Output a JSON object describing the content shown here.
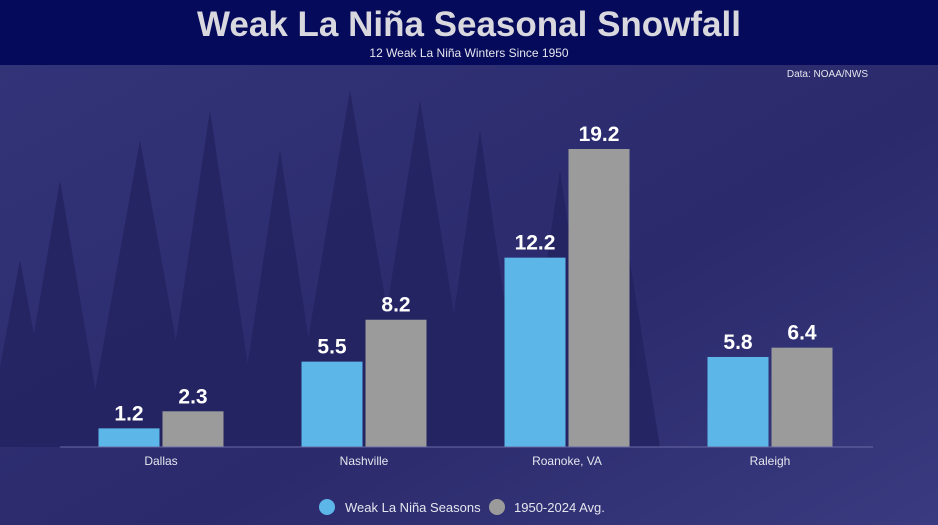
{
  "chart_data": {
    "type": "bar",
    "title": "Weak La Niña Seasonal Snowfall",
    "subtitle": "12 Weak La Niña Winters Since 1950",
    "source": "Data: NOAA/NWS",
    "categories": [
      "Dallas",
      "Nashville",
      "Roanoke, VA",
      "Raleigh"
    ],
    "series": [
      {
        "name": "Weak La Niña Seasons",
        "values": [
          1.2,
          5.5,
          12.2,
          5.8
        ],
        "color": "#5db6e8"
      },
      {
        "name": "1950-2024 Avg.",
        "values": [
          2.3,
          8.2,
          19.2,
          6.4
        ],
        "color": "#9b9b9b"
      }
    ],
    "ylim": [
      0,
      19.2
    ],
    "grid": false,
    "legend": "bottom-center",
    "colors": {
      "header": "#050a5a",
      "background": "#2b2b6e",
      "title": "#d8d8de"
    }
  }
}
